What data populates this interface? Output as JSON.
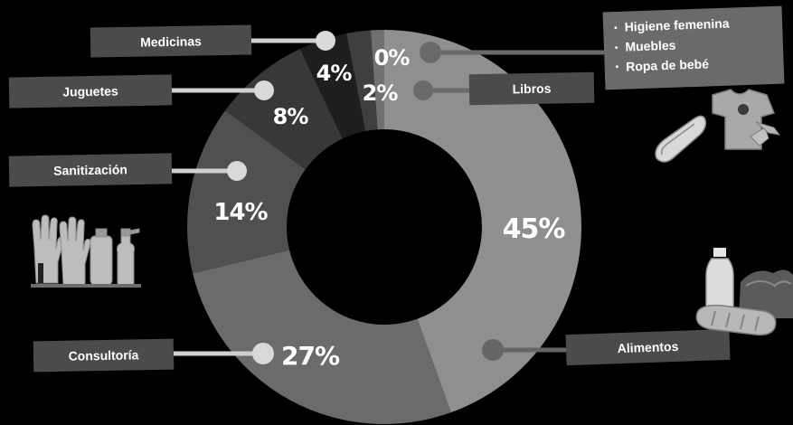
{
  "chart_data": {
    "type": "pie",
    "donut": true,
    "categories": [
      "Alimentos",
      "Consultoría",
      "Sanitización",
      "Juguetes",
      "Medicinas",
      "Libros",
      "Higiene femenina / Muebles / Ropa de bebé"
    ],
    "values": [
      45,
      27,
      14,
      8,
      4,
      2,
      0
    ],
    "value_labels": [
      "45%",
      "27%",
      "14%",
      "8%",
      "4%",
      "2%",
      "0%"
    ],
    "colors": [
      "#8f8f8f",
      "#6b6b6b",
      "#505050",
      "#383838",
      "#1e1e1e",
      "#3f3f3f",
      "#707070"
    ]
  },
  "labels": {
    "alimentos": "Alimentos",
    "consultoria": "Consultoría",
    "sanitizacion": "Sanitización",
    "juguetes": "Juguetes",
    "medicinas": "Medicinas",
    "libros": "Libros"
  },
  "zero_group": {
    "items": [
      "Higiene femenina",
      "Muebles",
      "Ropa de bebé"
    ]
  },
  "icons": [
    "sanitizer-products-icon",
    "pad-and-baby-clothes-icon",
    "bread-milk-vegetables-icon"
  ]
}
